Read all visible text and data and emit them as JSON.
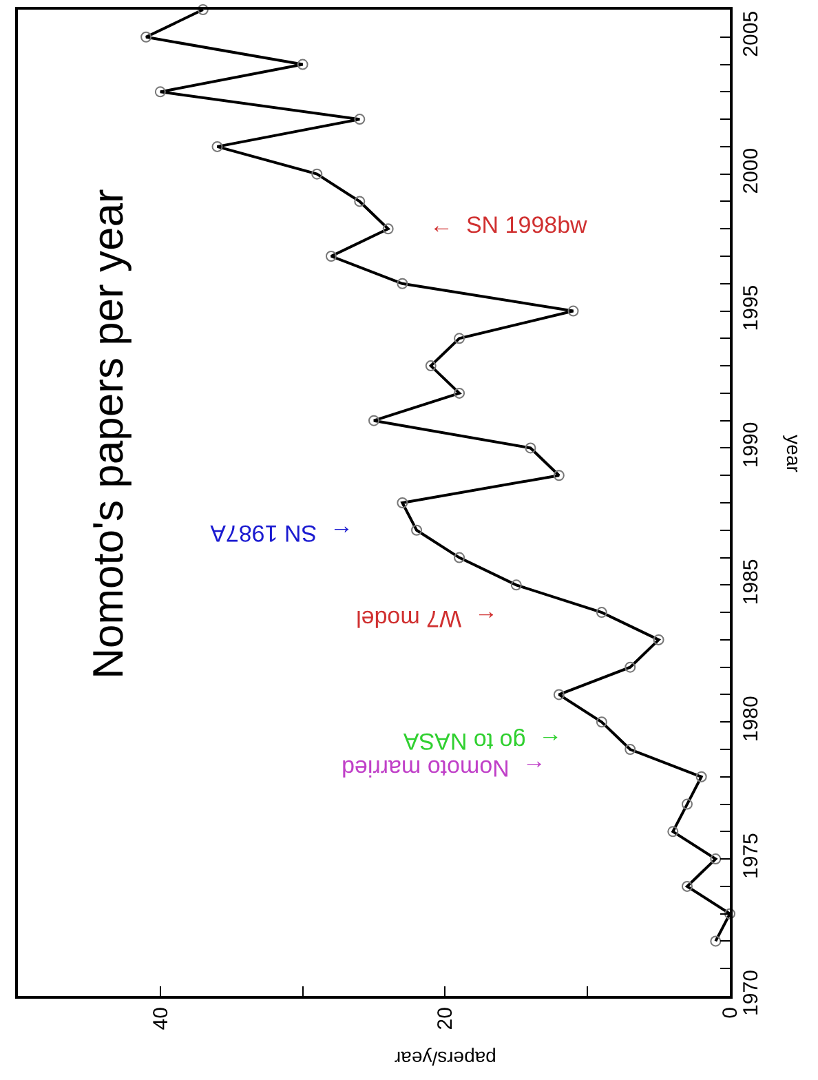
{
  "chart_data": {
    "type": "line",
    "orientation": "horizontal",
    "title": "Nomoto's papers per year",
    "xlabel": "papers/year",
    "ylabel": "year",
    "x": [
      1972,
      1973,
      1974,
      1975,
      1976,
      1977,
      1978,
      1979,
      1980,
      1981,
      1982,
      1983,
      1984,
      1985,
      1986,
      1987,
      1988,
      1989,
      1990,
      1991,
      1992,
      1993,
      1994,
      1995,
      1996,
      1997,
      1998,
      1999,
      2000,
      2001,
      2002,
      2003,
      2004,
      2005,
      2006
    ],
    "series": [
      {
        "color": "#000000",
        "values": [
          1,
          0,
          3,
          1,
          4,
          3,
          2,
          7,
          9,
          12,
          7,
          5,
          9,
          15,
          19,
          22,
          23,
          12,
          14,
          25,
          19,
          21,
          19,
          11,
          23,
          28,
          24,
          26,
          29,
          36,
          26,
          40,
          30,
          41,
          37
        ]
      }
    ],
    "marker": "circle",
    "line_style": "solid",
    "xlim": [
      50,
      0
    ],
    "xticks": [
      0,
      {
        "value": 10,
        "label": null
      },
      20,
      {
        "value": 30,
        "label": null
      },
      40
    ],
    "ylim": [
      1970,
      2006
    ],
    "yticks": [
      1970,
      {
        "value": 1971,
        "label": null
      },
      {
        "value": 1972,
        "label": null
      },
      {
        "value": 1973,
        "label": null
      },
      {
        "value": 1974,
        "label": null
      },
      1975,
      {
        "value": 1976,
        "label": null
      },
      {
        "value": 1977,
        "label": null
      },
      {
        "value": 1978,
        "label": null
      },
      {
        "value": 1979,
        "label": null
      },
      1980,
      {
        "value": 1981,
        "label": null
      },
      {
        "value": 1982,
        "label": null
      },
      {
        "value": 1983,
        "label": null
      },
      {
        "value": 1984,
        "label": null
      },
      1985,
      {
        "value": 1986,
        "label": null
      },
      {
        "value": 1987,
        "label": null
      },
      {
        "value": 1988,
        "label": null
      },
      {
        "value": 1989,
        "label": null
      },
      1990,
      {
        "value": 1991,
        "label": null
      },
      {
        "value": 1992,
        "label": null
      },
      {
        "value": 1993,
        "label": null
      },
      {
        "value": 1994,
        "label": null
      },
      1995,
      {
        "value": 1996,
        "label": null
      },
      {
        "value": 1997,
        "label": null
      },
      {
        "value": 1998,
        "label": null
      },
      {
        "value": 1999,
        "label": null
      },
      2000,
      {
        "value": 2001,
        "label": null
      },
      {
        "value": 2002,
        "label": null
      },
      {
        "value": 2003,
        "label": null
      },
      {
        "value": 2004,
        "label": null
      },
      2005
    ],
    "annotations": [
      "←  SN 1998bw",
      "←  SN 1987A",
      "←  W7 model",
      "←  Nomoto married",
      "←  go to NASA"
    ]
  }
}
